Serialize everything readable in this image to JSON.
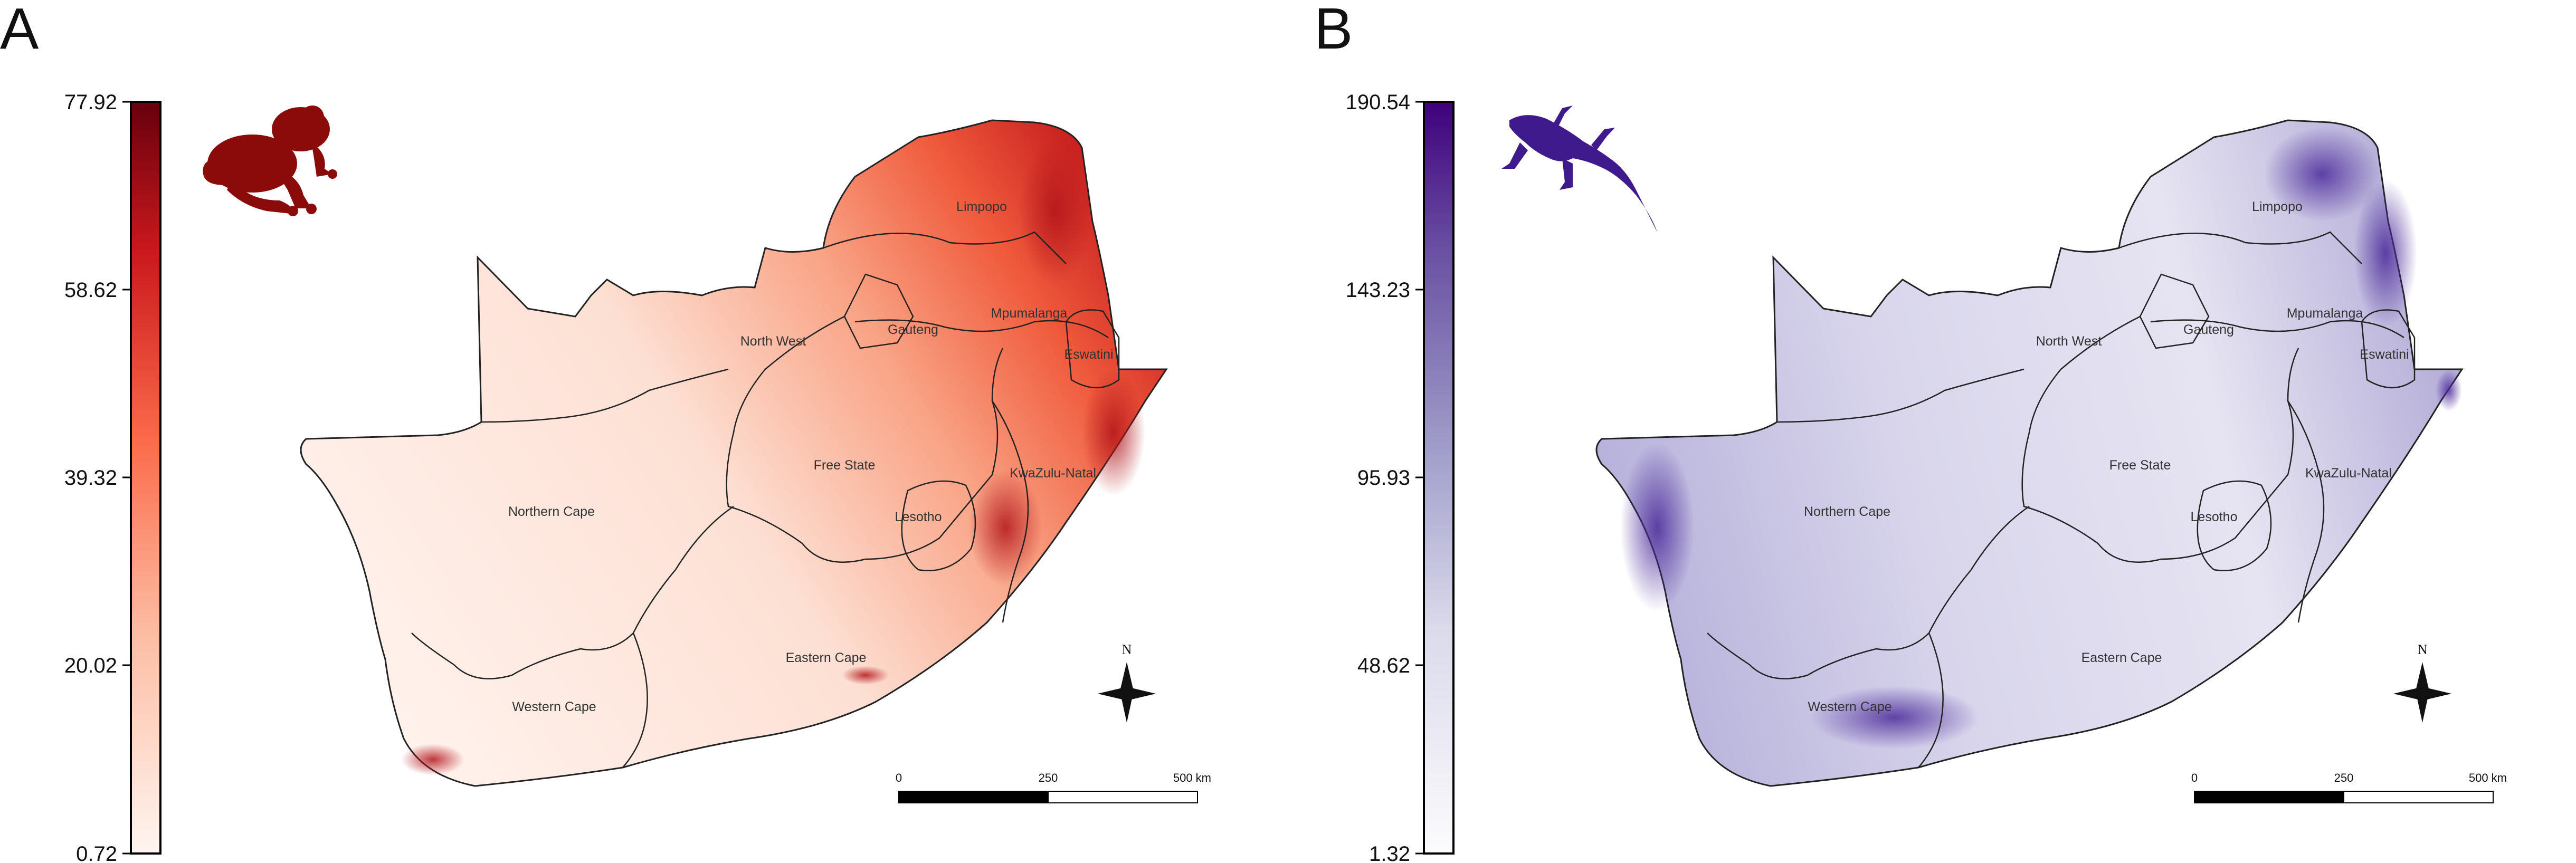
{
  "panels": [
    {
      "letter": "A",
      "taxon_icon": "frog-silhouette-icon",
      "accent_color": "#8b0a0a",
      "legend": {
        "ticks": [
          "77.92",
          "58.62",
          "39.32",
          "20.02",
          "0.72"
        ],
        "colors": [
          "#fff5f0",
          "#fcbba1",
          "#fb6a4a",
          "#cb181d",
          "#67000d"
        ]
      },
      "regions": [
        "Limpopo",
        "North West",
        "Gauteng",
        "Mpumalanga",
        "Eswatini",
        "Free State",
        "KwaZulu-Natal",
        "Lesotho",
        "Northern Cape",
        "Eastern Cape",
        "Western Cape"
      ],
      "north_label": "N",
      "scale_labels": [
        "0",
        "250",
        "500 km"
      ]
    },
    {
      "letter": "B",
      "taxon_icon": "lizard-silhouette-icon",
      "accent_color": "#3f1a8c",
      "legend": {
        "ticks": [
          "190.54",
          "143.23",
          "95.93",
          "48.62",
          "1.32"
        ],
        "colors": [
          "#fcfbfd",
          "#dadaeb",
          "#9e9ac8",
          "#6a51a3",
          "#3f007d"
        ]
      },
      "regions": [
        "Limpopo",
        "North West",
        "Gauteng",
        "Mpumalanga",
        "Eswatini",
        "Free State",
        "KwaZulu-Natal",
        "Lesotho",
        "Northern Cape",
        "Eastern Cape",
        "Western Cape"
      ],
      "north_label": "N",
      "scale_labels": [
        "0",
        "250",
        "500 km"
      ]
    }
  ]
}
